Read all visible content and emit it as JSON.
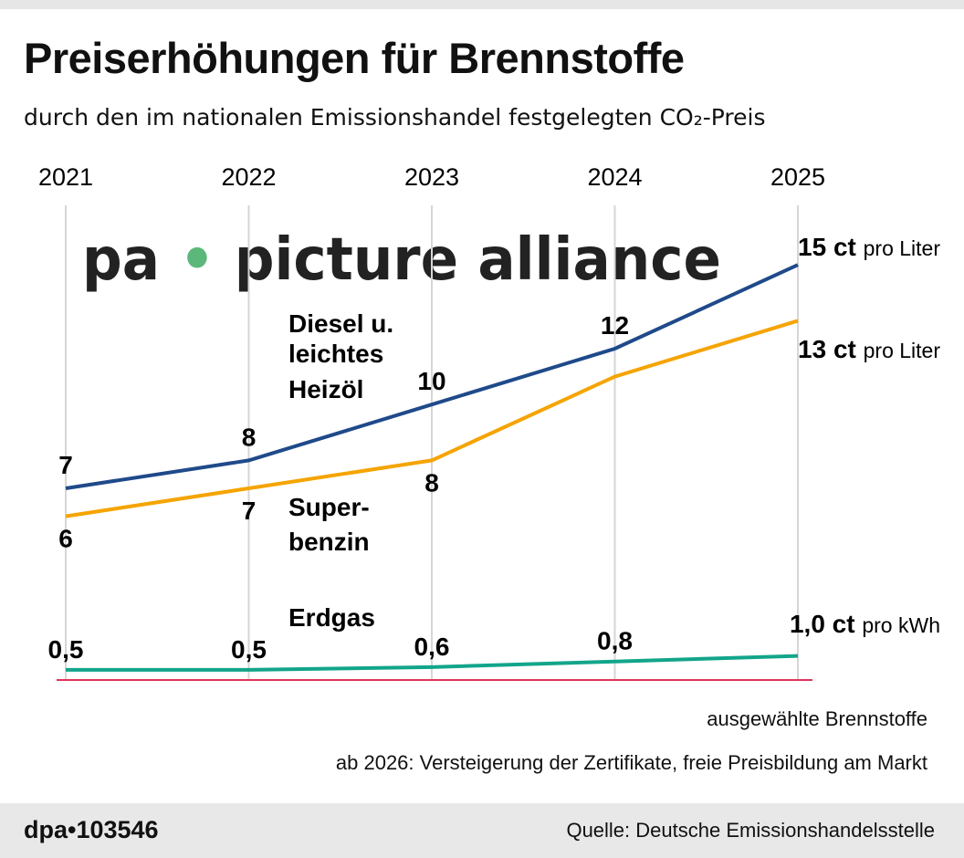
{
  "title": "Preiserhöhungen für Brennstoffe",
  "subtitle": "durch den im nationalen Emissionshandel festgelegten CO₂-Preis",
  "notes": [
    "ausgewählte Brennstoffe",
    "ab 2026: Versteigerung der Zertifikate, freie Preisbildung am Markt"
  ],
  "footer": {
    "id": "dpa•103546",
    "source": "Quelle: Deutsche Emissionshandelsstelle"
  },
  "watermark": "pa picture alliance",
  "chart_data": {
    "type": "line",
    "categories": [
      "2021",
      "2022",
      "2023",
      "2024",
      "2025"
    ],
    "unit": "ct",
    "grid": true,
    "series": [
      {
        "name": "Diesel u. leichtes Heizöl",
        "label_lines": [
          "Diesel u.",
          "leichtes",
          "Heizöl"
        ],
        "color": "#1f4a8a",
        "values": [
          7,
          8,
          10,
          12,
          15
        ],
        "labels": [
          "7",
          "8",
          "10",
          "12",
          ""
        ],
        "end_value": "15 ct",
        "end_unit": "pro Liter"
      },
      {
        "name": "Superbenzin",
        "label_lines": [
          "Super-",
          "benzin"
        ],
        "color": "#f5a400",
        "values": [
          6,
          7,
          8,
          11,
          13
        ],
        "labels": [
          "6",
          "7",
          "8",
          "",
          ""
        ],
        "end_value": "13 ct",
        "end_unit": "pro Liter"
      },
      {
        "name": "Erdgas",
        "label_lines": [
          "Erdgas"
        ],
        "color": "#12a58a",
        "values": [
          0.5,
          0.5,
          0.6,
          0.8,
          1.0
        ],
        "labels": [
          "0,5",
          "0,5",
          "0,6",
          "0,8",
          ""
        ],
        "end_value": "1,0 ct",
        "end_unit": "pro kWh"
      }
    ]
  }
}
